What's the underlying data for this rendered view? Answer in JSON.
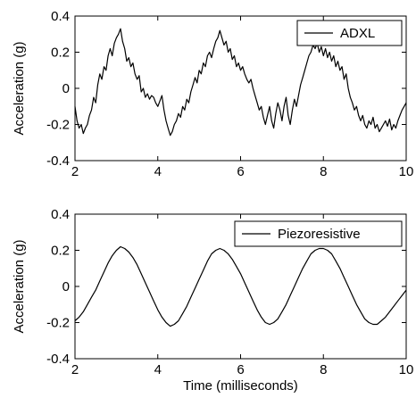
{
  "chart_data": [
    {
      "type": "line",
      "xlabel": "",
      "ylabel": "Acceleration (g)",
      "xlim": [
        2,
        10
      ],
      "ylim": [
        -0.4,
        0.4
      ],
      "xticks": [
        "2",
        "4",
        "6",
        "8",
        "10"
      ],
      "yticks": [
        "-0.4",
        "-0.2",
        "0",
        "0.2",
        "0.4"
      ],
      "legend_position": "top-right",
      "grid": false,
      "series": [
        {
          "name": "ADXL",
          "color": "#000000",
          "points": [
            [
              2.0,
              -0.1
            ],
            [
              2.05,
              -0.18
            ],
            [
              2.1,
              -0.22
            ],
            [
              2.15,
              -0.2
            ],
            [
              2.2,
              -0.25
            ],
            [
              2.25,
              -0.22
            ],
            [
              2.3,
              -0.2
            ],
            [
              2.35,
              -0.15
            ],
            [
              2.4,
              -0.12
            ],
            [
              2.45,
              -0.05
            ],
            [
              2.5,
              -0.08
            ],
            [
              2.55,
              0.02
            ],
            [
              2.6,
              0.08
            ],
            [
              2.65,
              0.05
            ],
            [
              2.7,
              0.12
            ],
            [
              2.75,
              0.1
            ],
            [
              2.8,
              0.18
            ],
            [
              2.85,
              0.22
            ],
            [
              2.9,
              0.18
            ],
            [
              2.95,
              0.25
            ],
            [
              3.0,
              0.28
            ],
            [
              3.05,
              0.3
            ],
            [
              3.1,
              0.33
            ],
            [
              3.15,
              0.26
            ],
            [
              3.2,
              0.22
            ],
            [
              3.25,
              0.15
            ],
            [
              3.3,
              0.17
            ],
            [
              3.35,
              0.12
            ],
            [
              3.4,
              0.14
            ],
            [
              3.45,
              0.08
            ],
            [
              3.5,
              0.05
            ],
            [
              3.55,
              0.07
            ],
            [
              3.6,
              -0.02
            ],
            [
              3.65,
              0.0
            ],
            [
              3.7,
              -0.05
            ],
            [
              3.75,
              -0.03
            ],
            [
              3.8,
              -0.06
            ],
            [
              3.85,
              -0.04
            ],
            [
              3.9,
              -0.05
            ],
            [
              3.95,
              -0.08
            ],
            [
              4.0,
              -0.1
            ],
            [
              4.05,
              -0.07
            ],
            [
              4.1,
              -0.04
            ],
            [
              4.15,
              -0.12
            ],
            [
              4.2,
              -0.18
            ],
            [
              4.25,
              -0.22
            ],
            [
              4.3,
              -0.26
            ],
            [
              4.35,
              -0.24
            ],
            [
              4.4,
              -0.2
            ],
            [
              4.45,
              -0.18
            ],
            [
              4.5,
              -0.14
            ],
            [
              4.55,
              -0.16
            ],
            [
              4.6,
              -0.1
            ],
            [
              4.65,
              -0.12
            ],
            [
              4.7,
              -0.06
            ],
            [
              4.75,
              -0.08
            ],
            [
              4.8,
              -0.02
            ],
            [
              4.85,
              0.02
            ],
            [
              4.9,
              0.06
            ],
            [
              4.95,
              0.03
            ],
            [
              5.0,
              0.1
            ],
            [
              5.05,
              0.08
            ],
            [
              5.1,
              0.14
            ],
            [
              5.15,
              0.12
            ],
            [
              5.2,
              0.18
            ],
            [
              5.25,
              0.2
            ],
            [
              5.3,
              0.17
            ],
            [
              5.35,
              0.22
            ],
            [
              5.4,
              0.26
            ],
            [
              5.45,
              0.28
            ],
            [
              5.5,
              0.32
            ],
            [
              5.55,
              0.28
            ],
            [
              5.6,
              0.24
            ],
            [
              5.65,
              0.26
            ],
            [
              5.7,
              0.2
            ],
            [
              5.75,
              0.22
            ],
            [
              5.8,
              0.16
            ],
            [
              5.85,
              0.18
            ],
            [
              5.9,
              0.12
            ],
            [
              5.95,
              0.14
            ],
            [
              6.0,
              0.1
            ],
            [
              6.05,
              0.12
            ],
            [
              6.1,
              0.08
            ],
            [
              6.15,
              0.05
            ],
            [
              6.2,
              0.03
            ],
            [
              6.25,
              0.05
            ],
            [
              6.3,
              0.0
            ],
            [
              6.35,
              -0.04
            ],
            [
              6.4,
              -0.08
            ],
            [
              6.45,
              -0.12
            ],
            [
              6.5,
              -0.1
            ],
            [
              6.55,
              -0.16
            ],
            [
              6.6,
              -0.2
            ],
            [
              6.65,
              -0.15
            ],
            [
              6.7,
              -0.1
            ],
            [
              6.75,
              -0.18
            ],
            [
              6.8,
              -0.22
            ],
            [
              6.85,
              -0.14
            ],
            [
              6.9,
              -0.08
            ],
            [
              6.95,
              -0.12
            ],
            [
              7.0,
              -0.18
            ],
            [
              7.05,
              -0.1
            ],
            [
              7.1,
              -0.05
            ],
            [
              7.15,
              -0.15
            ],
            [
              7.2,
              -0.2
            ],
            [
              7.25,
              -0.12
            ],
            [
              7.3,
              -0.06
            ],
            [
              7.35,
              -0.1
            ],
            [
              7.4,
              -0.04
            ],
            [
              7.45,
              0.02
            ],
            [
              7.5,
              0.06
            ],
            [
              7.55,
              0.1
            ],
            [
              7.6,
              0.14
            ],
            [
              7.65,
              0.18
            ],
            [
              7.7,
              0.2
            ],
            [
              7.75,
              0.24
            ],
            [
              7.8,
              0.22
            ],
            [
              7.85,
              0.25
            ],
            [
              7.9,
              0.2
            ],
            [
              7.95,
              0.23
            ],
            [
              8.0,
              0.18
            ],
            [
              8.05,
              0.22
            ],
            [
              8.1,
              0.17
            ],
            [
              8.15,
              0.2
            ],
            [
              8.2,
              0.15
            ],
            [
              8.25,
              0.18
            ],
            [
              8.3,
              0.12
            ],
            [
              8.35,
              0.15
            ],
            [
              8.4,
              0.1
            ],
            [
              8.45,
              0.12
            ],
            [
              8.5,
              0.05
            ],
            [
              8.55,
              0.08
            ],
            [
              8.6,
              0.0
            ],
            [
              8.65,
              -0.05
            ],
            [
              8.7,
              -0.08
            ],
            [
              8.75,
              -0.12
            ],
            [
              8.8,
              -0.1
            ],
            [
              8.85,
              -0.15
            ],
            [
              8.9,
              -0.18
            ],
            [
              8.95,
              -0.15
            ],
            [
              9.0,
              -0.2
            ],
            [
              9.05,
              -0.22
            ],
            [
              9.1,
              -0.18
            ],
            [
              9.15,
              -0.2
            ],
            [
              9.2,
              -0.16
            ],
            [
              9.25,
              -0.22
            ],
            [
              9.3,
              -0.2
            ],
            [
              9.35,
              -0.24
            ],
            [
              9.4,
              -0.22
            ],
            [
              9.45,
              -0.2
            ],
            [
              9.5,
              -0.18
            ],
            [
              9.55,
              -0.21
            ],
            [
              9.6,
              -0.17
            ],
            [
              9.65,
              -0.23
            ],
            [
              9.7,
              -0.2
            ],
            [
              9.75,
              -0.22
            ],
            [
              9.8,
              -0.18
            ],
            [
              9.85,
              -0.15
            ],
            [
              9.9,
              -0.12
            ],
            [
              9.95,
              -0.1
            ],
            [
              10.0,
              -0.08
            ]
          ]
        }
      ]
    },
    {
      "type": "line",
      "xlabel": "Time (milliseconds)",
      "ylabel": "Acceleration (g)",
      "xlim": [
        2,
        10
      ],
      "ylim": [
        -0.4,
        0.4
      ],
      "xticks": [
        "2",
        "4",
        "6",
        "8",
        "10"
      ],
      "yticks": [
        "-0.4",
        "-0.2",
        "0",
        "0.2",
        "0.4"
      ],
      "legend_position": "top-right",
      "grid": false,
      "series": [
        {
          "name": "Piezoresistive",
          "color": "#000000",
          "points": [
            [
              2.0,
              -0.19
            ],
            [
              2.1,
              -0.17
            ],
            [
              2.2,
              -0.14
            ],
            [
              2.3,
              -0.1
            ],
            [
              2.4,
              -0.06
            ],
            [
              2.5,
              -0.02
            ],
            [
              2.6,
              0.03
            ],
            [
              2.7,
              0.08
            ],
            [
              2.8,
              0.13
            ],
            [
              2.9,
              0.17
            ],
            [
              3.0,
              0.2
            ],
            [
              3.1,
              0.22
            ],
            [
              3.2,
              0.21
            ],
            [
              3.3,
              0.19
            ],
            [
              3.4,
              0.16
            ],
            [
              3.5,
              0.12
            ],
            [
              3.6,
              0.07
            ],
            [
              3.7,
              0.02
            ],
            [
              3.8,
              -0.03
            ],
            [
              3.9,
              -0.08
            ],
            [
              4.0,
              -0.13
            ],
            [
              4.1,
              -0.17
            ],
            [
              4.2,
              -0.2
            ],
            [
              4.3,
              -0.22
            ],
            [
              4.4,
              -0.21
            ],
            [
              4.5,
              -0.19
            ],
            [
              4.6,
              -0.15
            ],
            [
              4.7,
              -0.11
            ],
            [
              4.8,
              -0.06
            ],
            [
              4.9,
              -0.01
            ],
            [
              5.0,
              0.04
            ],
            [
              5.1,
              0.09
            ],
            [
              5.2,
              0.14
            ],
            [
              5.3,
              0.18
            ],
            [
              5.4,
              0.2
            ],
            [
              5.5,
              0.21
            ],
            [
              5.6,
              0.2
            ],
            [
              5.7,
              0.18
            ],
            [
              5.8,
              0.15
            ],
            [
              5.9,
              0.11
            ],
            [
              6.0,
              0.07
            ],
            [
              6.1,
              0.02
            ],
            [
              6.2,
              -0.03
            ],
            [
              6.3,
              -0.08
            ],
            [
              6.4,
              -0.13
            ],
            [
              6.5,
              -0.17
            ],
            [
              6.6,
              -0.2
            ],
            [
              6.7,
              -0.21
            ],
            [
              6.8,
              -0.2
            ],
            [
              6.9,
              -0.18
            ],
            [
              7.0,
              -0.14
            ],
            [
              7.1,
              -0.1
            ],
            [
              7.2,
              -0.05
            ],
            [
              7.3,
              0.0
            ],
            [
              7.4,
              0.05
            ],
            [
              7.5,
              0.1
            ],
            [
              7.6,
              0.14
            ],
            [
              7.7,
              0.18
            ],
            [
              7.8,
              0.2
            ],
            [
              7.9,
              0.21
            ],
            [
              8.0,
              0.21
            ],
            [
              8.1,
              0.2
            ],
            [
              8.2,
              0.18
            ],
            [
              8.3,
              0.14
            ],
            [
              8.4,
              0.1
            ],
            [
              8.5,
              0.05
            ],
            [
              8.6,
              0.0
            ],
            [
              8.7,
              -0.05
            ],
            [
              8.8,
              -0.1
            ],
            [
              8.9,
              -0.14
            ],
            [
              9.0,
              -0.18
            ],
            [
              9.1,
              -0.2
            ],
            [
              9.2,
              -0.21
            ],
            [
              9.3,
              -0.21
            ],
            [
              9.4,
              -0.19
            ],
            [
              9.5,
              -0.17
            ],
            [
              9.6,
              -0.14
            ],
            [
              9.7,
              -0.11
            ],
            [
              9.8,
              -0.08
            ],
            [
              9.9,
              -0.05
            ],
            [
              10.0,
              -0.02
            ]
          ]
        }
      ]
    }
  ]
}
